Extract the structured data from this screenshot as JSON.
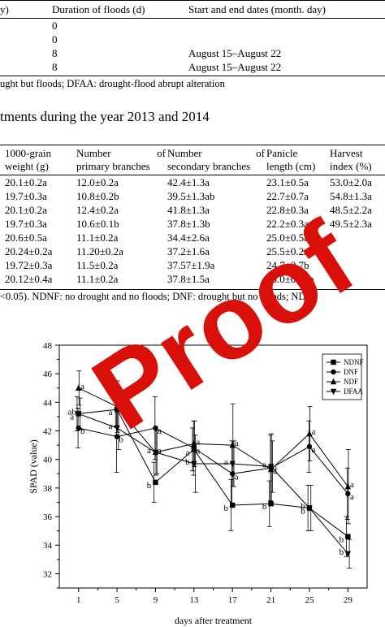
{
  "table1": {
    "headers": [
      "y)",
      "Duration of floods (d)",
      "Start and end dates (month. day)"
    ],
    "rows": [
      {
        "duration": "0",
        "dates": ""
      },
      {
        "duration": "0",
        "dates": ""
      },
      {
        "duration": "8",
        "dates": "August 15–August 22"
      },
      {
        "duration": "8",
        "dates": "August 15–August 22"
      }
    ],
    "footnote": "ught but floods; DFAA: drought-flood abrupt alteration"
  },
  "table2": {
    "caption": "tments during the year 2013 and 2014",
    "headers": {
      "c1a": "1000-grain",
      "c1b": "weight (g)",
      "c2a": "Number",
      "c2b": "of",
      "c2c": "primary branches",
      "c3a": "Number",
      "c3b": "of",
      "c3c": "secondary branches",
      "c4a": "Panicle",
      "c4b": "length (cm)",
      "c5a": "Harvest",
      "c5b": "index (%)"
    },
    "rows": [
      [
        "20.1±0.2a",
        "12.0±0.2a",
        "42.4±1.3a",
        "23.1±0.5a",
        "53.0±2.0a"
      ],
      [
        "19.7±0.3a",
        "10.8±0.2b",
        "39.5±1.3ab",
        "22.7±0.7a",
        "54.8±1.3a"
      ],
      [
        "20.1±0.2a",
        "12.4±0.2a",
        "41.8±1.3a",
        "22.8±0.3a",
        "48.5±2.2a"
      ],
      [
        "19.7±0.3a",
        "10.6±0.1b",
        "37.8±1.3b",
        "22.2±0.3a",
        "49.5±2.3a"
      ],
      [
        "20.6±0.5a",
        "11.1±0.2a",
        "34.4±2.6a",
        "25.0±0.5ab",
        ""
      ],
      [
        "20.24±0.2a",
        "11.20±0.2a",
        "37.2±1.6a",
        "25.5±0.2ab",
        ""
      ],
      [
        "19.72±0.3a",
        "11.5±0.2a",
        "37.57±1.9a",
        "24.7±0.7b",
        ""
      ],
      [
        "20.12±0.4a",
        "11.1±0.2a",
        "37.8±1.5a",
        "25.0±0.4ab",
        ""
      ]
    ],
    "footnote": "<0.05). NDNF: no drought and no floods; DNF: drought but no floods; NDF:"
  },
  "watermark": {
    "text": "Proof",
    "color": "#d9100a"
  },
  "chart_data": {
    "type": "line",
    "xlabel": "days after treatment",
    "ylabel": "SPAD (value)",
    "x": [
      1,
      5,
      9,
      13,
      17,
      21,
      25,
      29
    ],
    "xlim": [
      -1,
      31
    ],
    "ylim": [
      31,
      48
    ],
    "yticks": [
      32,
      34,
      36,
      38,
      40,
      42,
      44,
      46,
      48
    ],
    "legend_position": "top-right",
    "series": [
      {
        "name": "NDNF",
        "marker": "square",
        "values": [
          43.2,
          43.5,
          38.4,
          40.7,
          36.8,
          36.9,
          36.6,
          34.6
        ],
        "errors": [
          1.2,
          1.2,
          1.4,
          1.5,
          1.8,
          1.6,
          1.6,
          1.4
        ],
        "labels": [
          "a",
          "a",
          "b",
          "a",
          "b",
          "b",
          "b",
          "b"
        ]
      },
      {
        "name": "DNF",
        "marker": "circle",
        "values": [
          42.2,
          41.6,
          42.2,
          40.8,
          39.0,
          39.4,
          40.9,
          37.6
        ],
        "errors": [
          1.4,
          2.5,
          2.2,
          1.9,
          2.3,
          2.3,
          1.8,
          1.8
        ],
        "labels": [
          "b",
          "b",
          "a",
          "a",
          "a",
          "a",
          "a",
          "a"
        ]
      },
      {
        "name": "NDF",
        "marker": "triangle-up",
        "values": [
          45.0,
          43.7,
          40.5,
          41.1,
          41.0,
          39.3,
          41.8,
          38.1
        ],
        "errors": [
          1.2,
          1.8,
          1.6,
          1.6,
          2.9,
          2.5,
          1.9,
          2.6
        ],
        "labels": [
          "a",
          "a",
          "a",
          "a",
          "a",
          "a",
          "a",
          "a"
        ]
      },
      {
        "name": "DFAA",
        "marker": "triangle-down",
        "values": [
          43.2,
          42.2,
          40.5,
          39.7,
          39.7,
          39.5,
          36.6,
          33.4
        ],
        "errors": [
          1.1,
          1.5,
          1.5,
          2.0,
          1.6,
          1.8,
          1.6,
          1.0
        ],
        "labels": [
          "ab",
          "a",
          "a",
          "b",
          "a",
          "a",
          "b",
          "b"
        ]
      }
    ]
  }
}
